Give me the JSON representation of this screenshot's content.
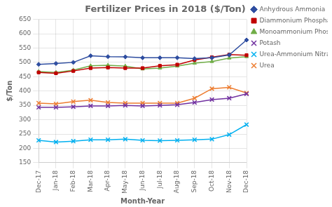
{
  "chart_data": {
    "type": "line",
    "title": "Fertilizer Prices in 2018 ($/Ton)",
    "x_label": "Month-Year",
    "y_label": "$/Ton",
    "categories": [
      "Dec-17",
      "Jan-18",
      "Feb-18",
      "Mar-18",
      "Apr-18",
      "May-18",
      "Jun-18",
      "Jul-18",
      "Aug-18",
      "Sep-18",
      "Oct-18",
      "Nov-18",
      "Dec-18"
    ],
    "series": [
      {
        "name": "Anhydrous Ammonia",
        "color": "#2E4DA0",
        "marker": "diamond",
        "values": [
          493,
          496,
          500,
          523,
          520,
          519,
          516,
          516,
          516,
          513,
          516,
          526,
          578
        ]
      },
      {
        "name": "Diammonium Phosphate (DAP)",
        "color": "#C00000",
        "marker": "square",
        "values": [
          465,
          462,
          470,
          480,
          482,
          480,
          480,
          488,
          492,
          508,
          518,
          527,
          525
        ]
      },
      {
        "name": "Monoammonium Phosphate (MAP)",
        "color": "#70AD47",
        "marker": "triangle",
        "values": [
          468,
          465,
          473,
          488,
          490,
          487,
          477,
          480,
          487,
          497,
          503,
          515,
          520
        ]
      },
      {
        "name": "Potash",
        "color": "#7030A0",
        "marker": "x",
        "values": [
          343,
          343,
          345,
          348,
          348,
          350,
          348,
          350,
          352,
          360,
          370,
          375,
          390
        ]
      },
      {
        "name": "Urea-Ammonium Nitrate (UAN)",
        "color": "#00B0F0",
        "marker": "x",
        "values": [
          228,
          222,
          225,
          230,
          230,
          232,
          228,
          227,
          228,
          230,
          232,
          248,
          283
        ]
      },
      {
        "name": "Urea",
        "color": "#ED7D31",
        "marker": "x",
        "values": [
          358,
          355,
          363,
          368,
          360,
          358,
          358,
          358,
          358,
          375,
          408,
          413,
          393
        ]
      }
    ],
    "ylim": [
      150,
      650
    ],
    "yticks": [
      150,
      200,
      250,
      300,
      350,
      400,
      450,
      500,
      550,
      600,
      650
    ],
    "grid": true,
    "legend": "right"
  }
}
